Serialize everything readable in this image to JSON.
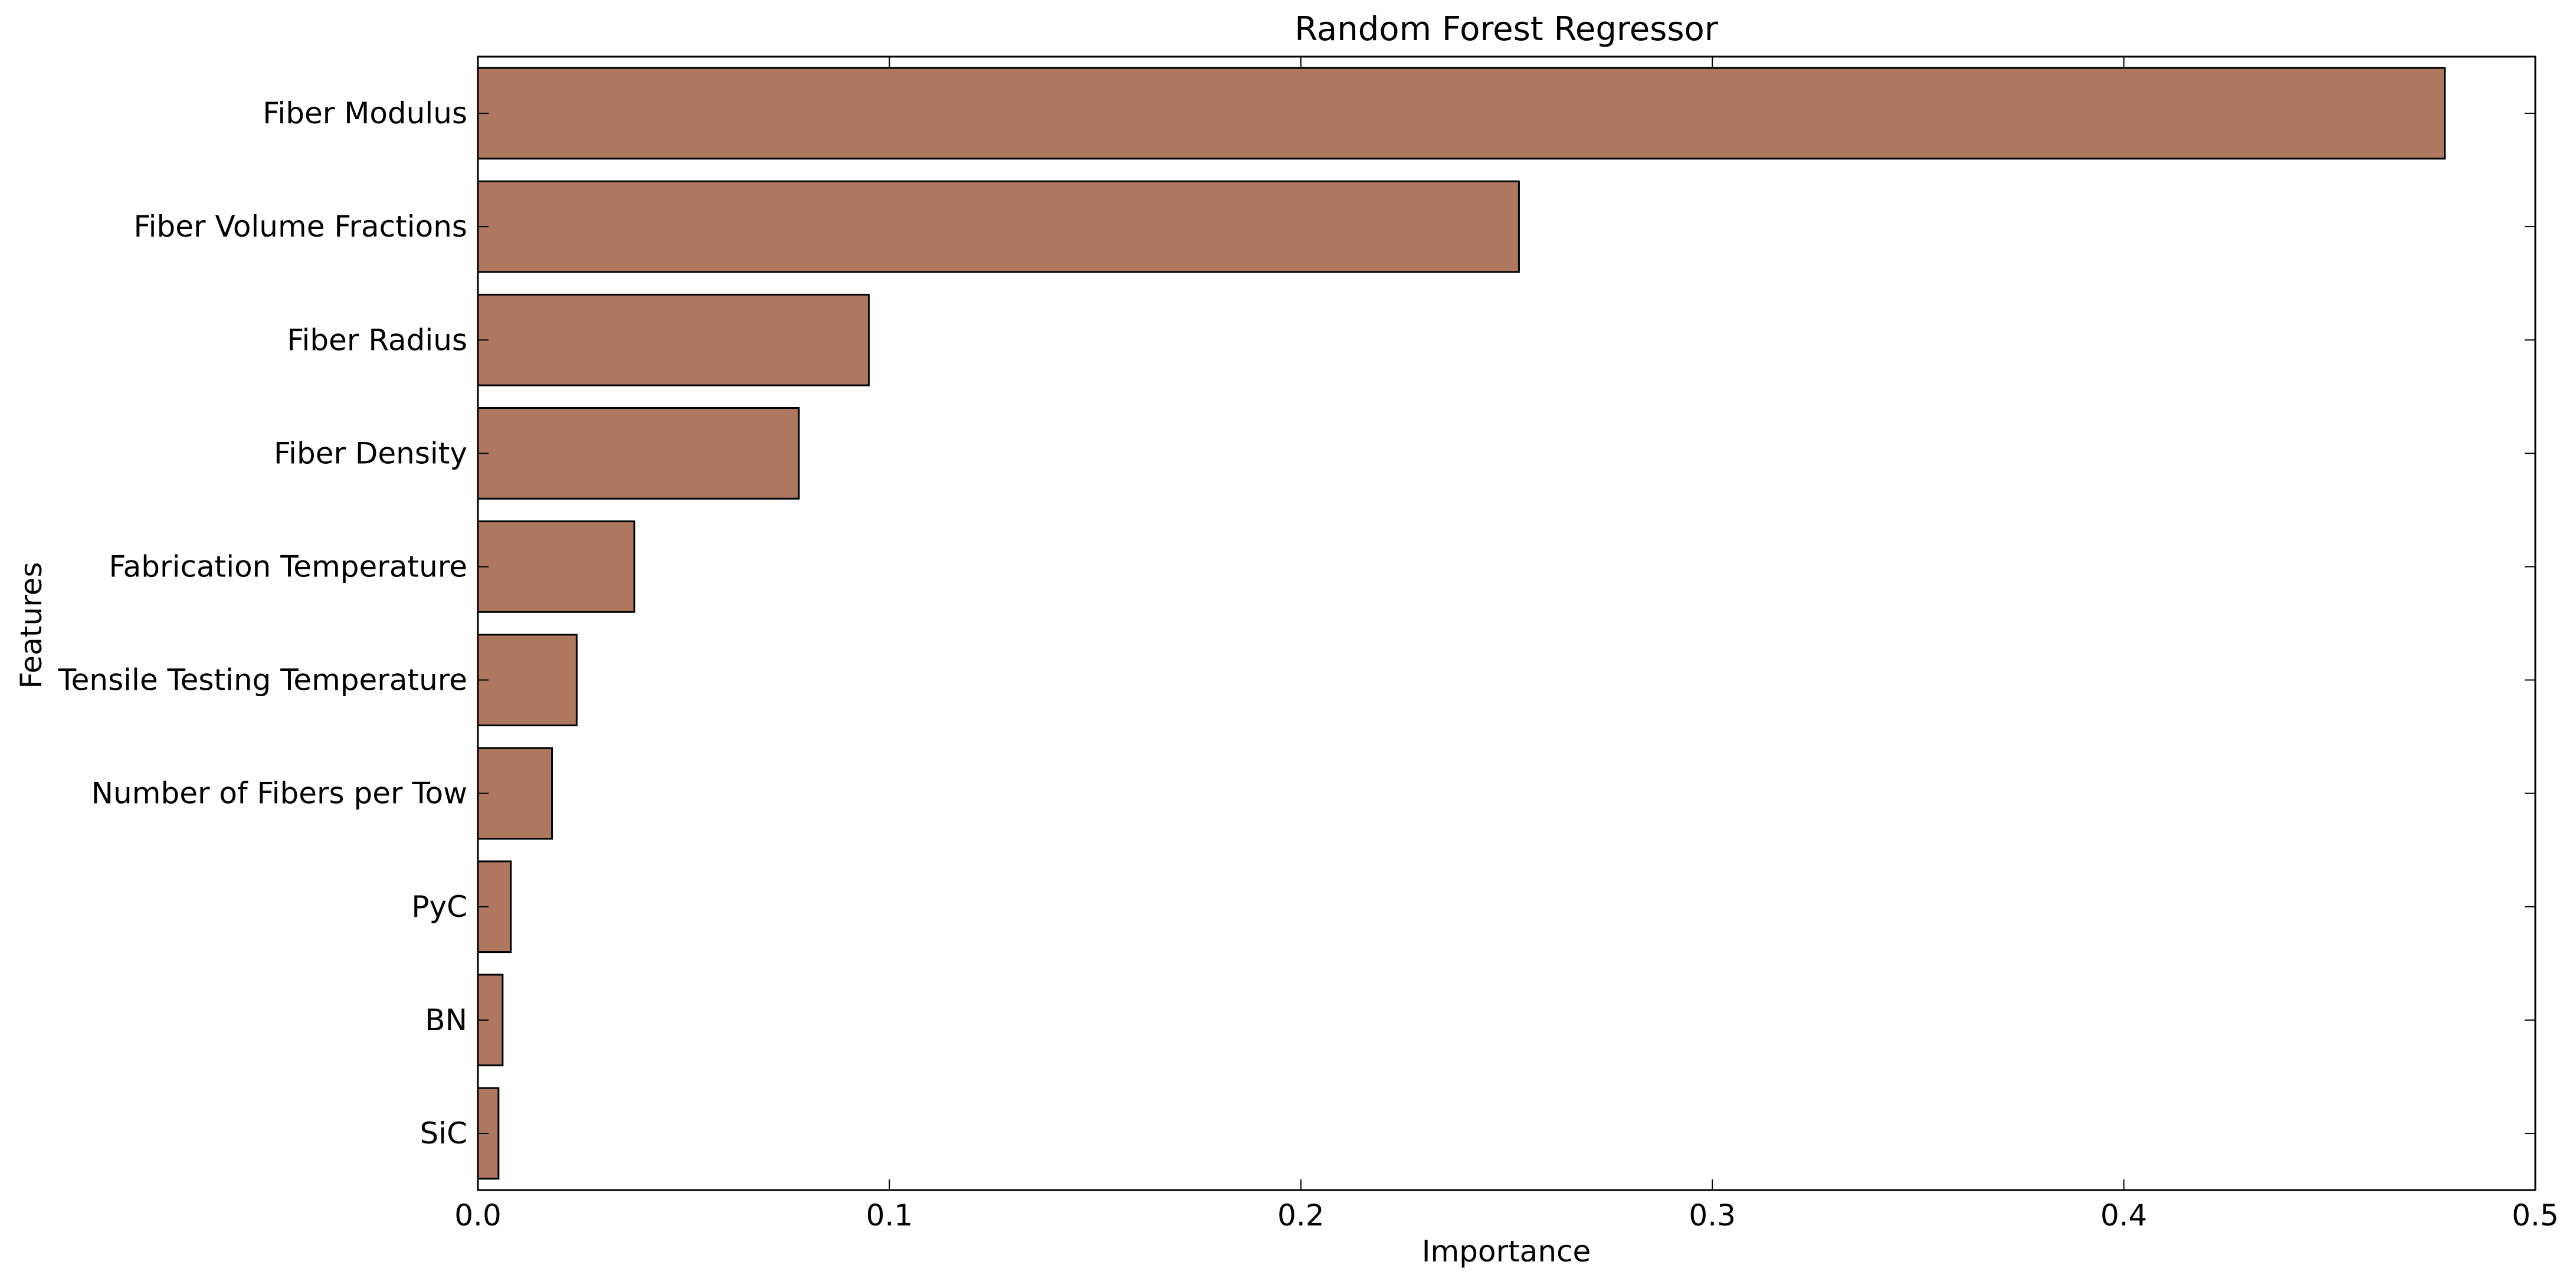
{
  "chart_data": {
    "type": "bar",
    "orientation": "horizontal",
    "title": "Random Forest Regressor",
    "xlabel": "Importance",
    "ylabel": "Features",
    "categories": [
      "Fiber Modulus",
      "Fiber Volume Fractions",
      "Fiber Radius",
      "Fiber Density",
      "Fabrication Temperature",
      "Tensile Testing Temperature",
      "Number of Fibers per Tow",
      "PyC",
      "BN",
      "SiC"
    ],
    "values": [
      0.478,
      0.253,
      0.095,
      0.078,
      0.038,
      0.024,
      0.018,
      0.008,
      0.006,
      0.005
    ],
    "xlim": [
      0.0,
      0.5
    ],
    "xticks": [
      0.0,
      0.1,
      0.2,
      0.3,
      0.4,
      0.5
    ],
    "xtick_labels": [
      "0.0",
      "0.1",
      "0.2",
      "0.3",
      "0.4",
      "0.5"
    ],
    "grid": false,
    "legend": "none",
    "bar_color": "#ad7760",
    "bar_edge_color": "#000000"
  }
}
